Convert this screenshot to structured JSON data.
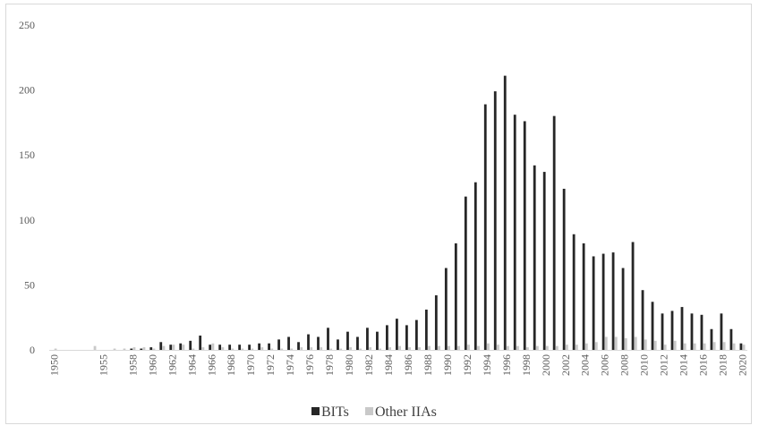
{
  "chart_data": {
    "type": "bar",
    "title": "",
    "xlabel": "",
    "ylabel": "",
    "ylim": [
      0,
      250
    ],
    "yticks": [
      0,
      50,
      100,
      150,
      200,
      250
    ],
    "grid": false,
    "legend_position": "bottom",
    "colors": {
      "BITs": "#262626",
      "Other IIAs": "#c9c9c9"
    },
    "categories": [
      "1950",
      "1951",
      "1952",
      "1953",
      "1954",
      "1955",
      "1956",
      "1957",
      "1958",
      "1959",
      "1960",
      "1961",
      "1962",
      "1963",
      "1964",
      "1965",
      "1966",
      "1967",
      "1968",
      "1969",
      "1970",
      "1971",
      "1972",
      "1973",
      "1974",
      "1975",
      "1976",
      "1977",
      "1978",
      "1979",
      "1980",
      "1981",
      "1982",
      "1983",
      "1984",
      "1985",
      "1986",
      "1987",
      "1988",
      "1989",
      "1990",
      "1991",
      "1992",
      "1993",
      "1994",
      "1995",
      "1996",
      "1997",
      "1998",
      "1999",
      "2000",
      "2001",
      "2002",
      "2003",
      "2004",
      "2005",
      "2006",
      "2007",
      "2008",
      "2009",
      "2010",
      "2011",
      "2012",
      "2013",
      "2014",
      "2015",
      "2016",
      "2017",
      "2018",
      "2019",
      "2020"
    ],
    "tick_labels": [
      "1950",
      "1955",
      "1958",
      "1960",
      "1962",
      "1964",
      "1966",
      "1968",
      "1970",
      "1972",
      "1974",
      "1976",
      "1978",
      "1980",
      "1982",
      "1984",
      "1986",
      "1988",
      "1990",
      "1992",
      "1994",
      "1996",
      "1998",
      "2000",
      "2002",
      "2004",
      "2006",
      "2008",
      "2010",
      "2012",
      "2014",
      "2016",
      "2018",
      "2020"
    ],
    "series": [
      {
        "name": "BITs",
        "values": [
          0,
          0,
          0,
          0,
          0,
          0,
          0,
          0,
          1,
          1,
          2,
          6,
          4,
          5,
          7,
          11,
          4,
          4,
          4,
          4,
          4,
          5,
          5,
          8,
          10,
          6,
          12,
          10,
          17,
          8,
          14,
          10,
          17,
          14,
          19,
          24,
          19,
          23,
          31,
          42,
          63,
          82,
          118,
          129,
          189,
          199,
          211,
          181,
          176,
          142,
          137,
          180,
          124,
          89,
          82,
          72,
          74,
          75,
          63,
          83,
          46,
          37,
          28,
          30,
          33,
          28,
          27,
          16,
          28,
          16,
          5
        ]
      },
      {
        "name": "Other IIAs",
        "values": [
          1,
          0,
          0,
          0,
          3,
          0,
          1,
          1,
          2,
          2,
          1,
          3,
          4,
          4,
          1,
          2,
          5,
          2,
          1,
          1,
          1,
          2,
          1,
          1,
          1,
          2,
          2,
          2,
          1,
          1,
          2,
          1,
          2,
          1,
          2,
          3,
          2,
          2,
          3,
          3,
          3,
          3,
          4,
          3,
          5,
          4,
          3,
          3,
          2,
          3,
          3,
          3,
          4,
          4,
          5,
          6,
          10,
          10,
          9,
          10,
          8,
          7,
          4,
          7,
          5,
          5,
          5,
          6,
          6,
          5,
          4
        ]
      }
    ]
  }
}
